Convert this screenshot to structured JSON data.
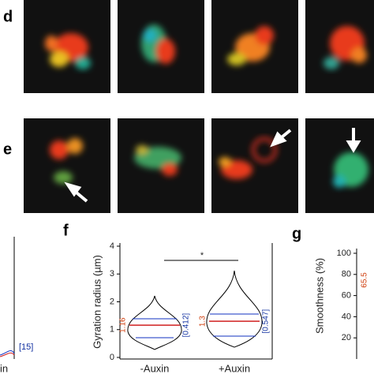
{
  "panels": {
    "d": "d",
    "e": "e",
    "f": "f",
    "g": "g"
  },
  "left_panel": {
    "annotation": "[15]",
    "xlabel_fragment": "in"
  },
  "chart_data": {
    "type": "violin",
    "ylabel": "Gyration radius (µm)",
    "categories": [
      "-Auxin",
      "+Auxin"
    ],
    "values": [
      1.16,
      1.3
    ],
    "spread": [
      0.412,
      0.547
    ],
    "spread_labels": [
      "[0.412]",
      "[0.547]"
    ],
    "annotation": "*",
    "ylim": [
      0,
      4
    ],
    "yticks": [
      0,
      1,
      2,
      3,
      4
    ]
  },
  "panel_g": {
    "ylabel": "Smoothness (%)",
    "ylim": [
      0,
      100
    ],
    "yticks": [
      20,
      40,
      60,
      80,
      100
    ],
    "annotation": "65.5"
  }
}
